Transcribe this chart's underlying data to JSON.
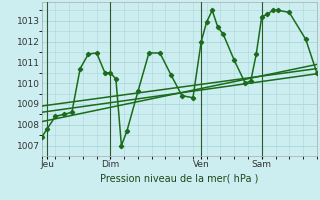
{
  "xlabel": "Pression niveau de la mer( hPa )",
  "bg_color": "#cdeef0",
  "grid_color": "#aad8dc",
  "line_color": "#1a6b1a",
  "xlim": [
    0,
    100
  ],
  "ylim": [
    1006.5,
    1013.9
  ],
  "yticks": [
    1007,
    1008,
    1009,
    1010,
    1011,
    1012,
    1013
  ],
  "xtick_positions": [
    2,
    25,
    58,
    80
  ],
  "xtick_labels": [
    "Jeu",
    "Dim",
    "Ven",
    "Sam"
  ],
  "vlines": [
    2,
    25,
    58,
    80
  ],
  "main_x": [
    0,
    2,
    5,
    8,
    11,
    14,
    17,
    20,
    23,
    25,
    27,
    29,
    31,
    35,
    39,
    43,
    47,
    51,
    55,
    58,
    60,
    62,
    64,
    66,
    70,
    74,
    76,
    78,
    80,
    82,
    84,
    86,
    90,
    96,
    100
  ],
  "main_y": [
    1007.4,
    1007.8,
    1008.4,
    1008.5,
    1008.6,
    1010.7,
    1011.4,
    1011.45,
    1010.5,
    1010.5,
    1010.2,
    1007.0,
    1007.7,
    1009.6,
    1011.45,
    1011.45,
    1010.4,
    1009.4,
    1009.3,
    1012.0,
    1012.95,
    1013.5,
    1012.7,
    1012.35,
    1011.1,
    1010.0,
    1010.1,
    1011.4,
    1013.2,
    1013.3,
    1013.5,
    1013.5,
    1013.4,
    1012.1,
    1010.5
  ],
  "trend1_x": [
    0,
    100
  ],
  "trend1_y": [
    1008.6,
    1010.45
  ],
  "trend2_x": [
    0,
    100
  ],
  "trend2_y": [
    1008.9,
    1010.7
  ],
  "trend3_x": [
    0,
    100
  ],
  "trend3_y": [
    1008.15,
    1010.9
  ]
}
